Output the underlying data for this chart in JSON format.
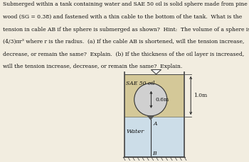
{
  "fig_width": 3.5,
  "fig_height": 2.29,
  "dpi": 100,
  "bg_color": "#f2ede0",
  "text_lines": [
    "Submerged within a tank containing water and SAE 50 oil is solid sphere made from pine",
    "wood (SG = 0.38) and fastened with a thin cable to the bottom of the tank.  What is the",
    "tension in cable AB if the sphere is submerged as shown?  Hint:  The volume of a sphere is",
    "(4/3)πr³ where r is the radius.  (a) If the cable AB is shortened, will the tension increase,",
    "decrease, or remain the same?  Explain.  (b) If the thickness of the oil layer is increased,",
    "will the tension increase, decrease, or remain the same?  Explain."
  ],
  "text_fontsize": 5.5,
  "text_color": "#111111",
  "label_oil": "SAE 50 oil",
  "label_water": "Water",
  "label_A": "A",
  "label_B": "B",
  "label_06m": "0.6m",
  "label_10m": "1.0m",
  "tank_color": "#444444",
  "water_color": "#ccdde8",
  "oil_color": "#d4c898",
  "sphere_face": "#d0d0d0",
  "sphere_edge": "#333333",
  "cable_color": "#333333",
  "dim_color": "#222222",
  "ground_color": "#444444",
  "tri_color": "#555555"
}
